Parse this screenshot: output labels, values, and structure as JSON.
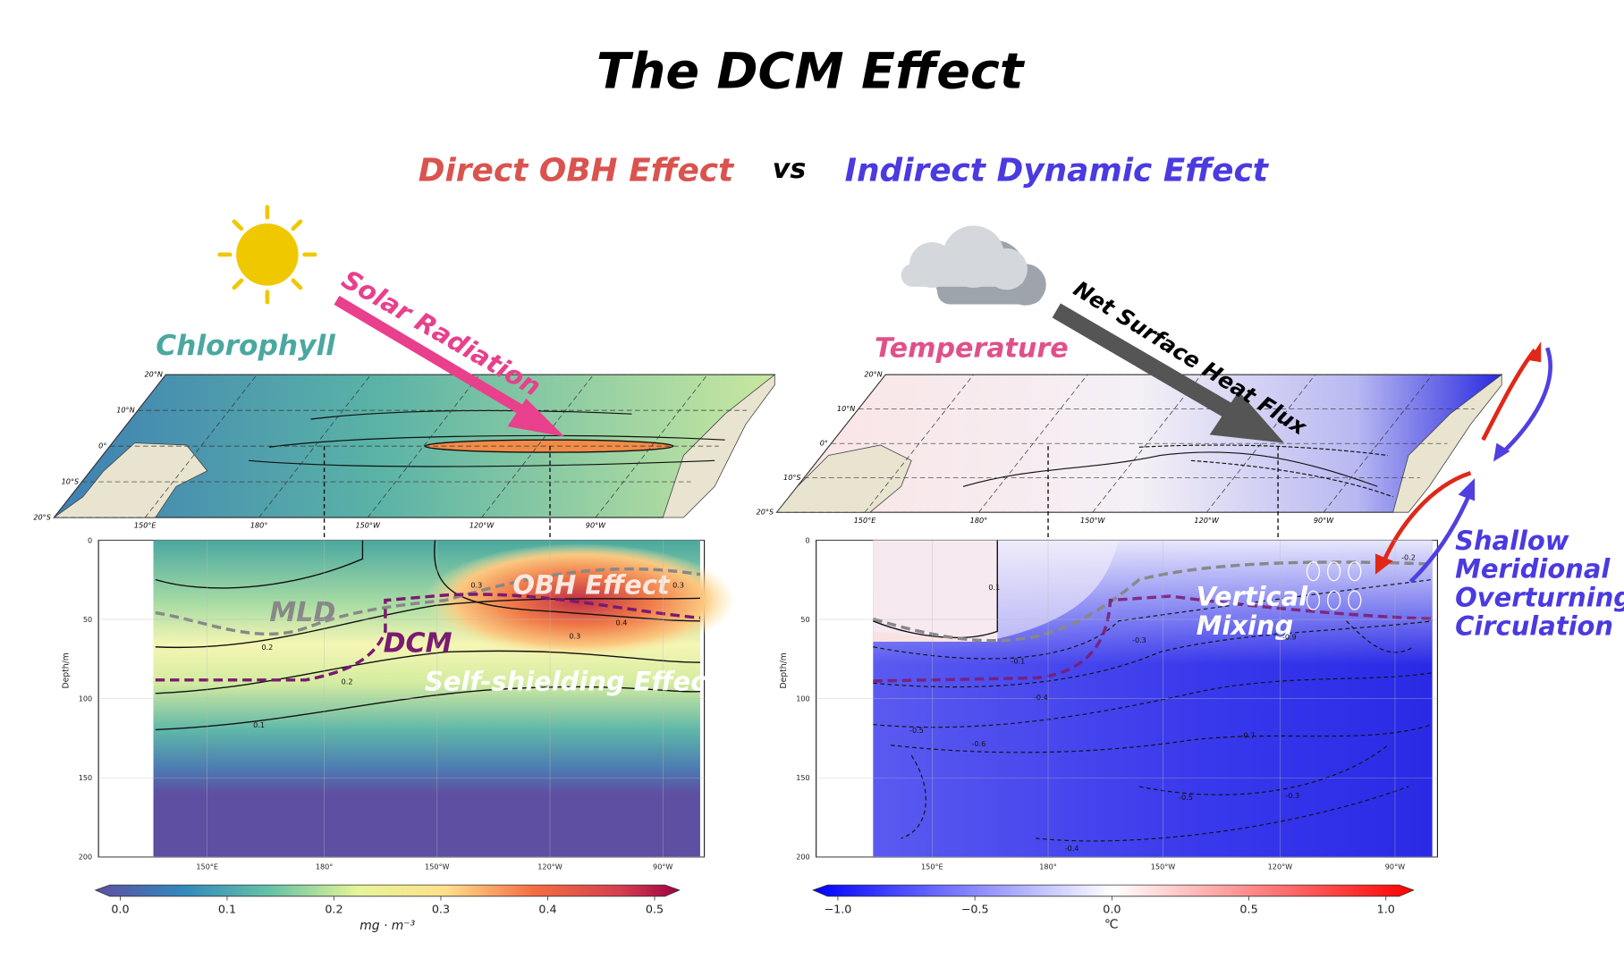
{
  "title": "The DCM Effect",
  "subtitles": {
    "direct": "Direct OBH Effect",
    "vs": "vs",
    "indirect": "Indirect Dynamic Effect"
  },
  "map_lat_ticks": [
    "20°N",
    "10°N",
    "0°",
    "10°S",
    "20°S"
  ],
  "left_panel": {
    "label": "Chlorophyll",
    "arrow_label": "Solar Radiation",
    "annotations": {
      "mld": "MLD",
      "dcm": "DCM",
      "obh": "OBH Effect",
      "self_shielding": "Self-shielding Effect"
    },
    "depth_label": "Depth/m",
    "depth_ticks": [
      "0",
      "50",
      "100",
      "150",
      "200"
    ],
    "lon_ticks": [
      "150°E",
      "180°",
      "150°W",
      "120°W",
      "90°W"
    ],
    "contour_labels": [
      "0.3",
      "0.2",
      "0.2",
      "0.1",
      "0.3",
      "0.4",
      "0.3"
    ],
    "colorbar": {
      "ticks": [
        "0.0",
        "0.1",
        "0.2",
        "0.3",
        "0.4",
        "0.5"
      ],
      "unit": "mg · m⁻³"
    }
  },
  "right_panel": {
    "label": "Temperature",
    "arrow_label": "Net Surface Heat Flux",
    "annotations": {
      "mixing_1": "Vertical",
      "mixing_2": "Mixing"
    },
    "depth_label": "Depth/m",
    "depth_ticks": [
      "0",
      "50",
      "100",
      "150",
      "200"
    ],
    "lon_ticks": [
      "150°E",
      "180°",
      "150°W",
      "120°W",
      "90°W"
    ],
    "contour_labels": [
      "0.1",
      "-0.1",
      "-0.3",
      "-0.4",
      "-0.5",
      "-0.6",
      "-0.7",
      "-0.5",
      "-0.3",
      "-0.4",
      "-0.9",
      "-0.2"
    ],
    "colorbar": {
      "ticks": [
        "−1.0",
        "−0.5",
        "0.0",
        "0.5",
        "1.0"
      ],
      "unit": "℃"
    }
  },
  "circulation_label": [
    "Shallow",
    "Meridional",
    "Overturning",
    "Circulation"
  ]
}
